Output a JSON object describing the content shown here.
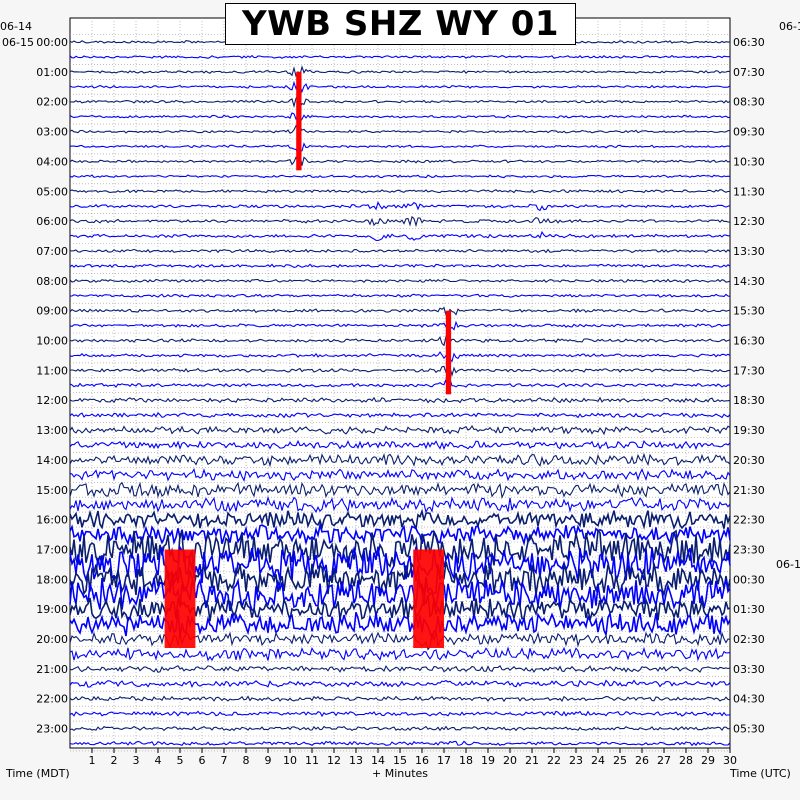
{
  "chart_data": {
    "type": "line",
    "title": "YWB SHZ WY 01",
    "xlabel": "+ Minutes",
    "left_axis_title": "Time (MDT)",
    "right_axis_title": "Time (UTC)",
    "left_date_top": "06-14",
    "left_date_first": "06-15",
    "right_date_top": "06-1",
    "right_date_mid": "06-1",
    "xlim": [
      0,
      30
    ],
    "x_ticks": [
      "1",
      "2",
      "3",
      "4",
      "5",
      "6",
      "7",
      "8",
      "9",
      "10",
      "11",
      "12",
      "13",
      "14",
      "15",
      "16",
      "17",
      "18",
      "19",
      "20",
      "21",
      "22",
      "23",
      "24",
      "25",
      "26",
      "27",
      "28",
      "29",
      "30"
    ],
    "left_hour_labels": [
      "00:00",
      "01:00",
      "02:00",
      "03:00",
      "04:00",
      "05:00",
      "06:00",
      "07:00",
      "08:00",
      "09:00",
      "10:00",
      "11:00",
      "12:00",
      "13:00",
      "14:00",
      "15:00",
      "16:00",
      "17:00",
      "18:00",
      "19:00",
      "20:00",
      "21:00",
      "22:00",
      "23:00"
    ],
    "right_hour_labels": [
      "06:30",
      "07:30",
      "08:30",
      "09:30",
      "10:30",
      "11:30",
      "12:30",
      "13:30",
      "14:30",
      "15:30",
      "16:30",
      "17:30",
      "18:30",
      "19:30",
      "20:30",
      "21:30",
      "22:30",
      "23:30",
      "00:30",
      "01:30",
      "02:30",
      "03:30",
      "04:30",
      "05:30"
    ],
    "traces_per_hour": 2,
    "trace_minutes": 30,
    "trace_colors": [
      "#0a1e6e",
      "#0000ff"
    ],
    "clip_color": "#ff0000",
    "noise_level_by_hour": [
      1.0,
      1.0,
      1.0,
      1.0,
      1.0,
      1.2,
      1.3,
      1.2,
      1.2,
      1.3,
      1.3,
      1.4,
      1.8,
      3.0,
      4.5,
      5.5,
      7.0,
      14.0,
      13.0,
      9.0,
      5.0,
      2.5,
      1.8,
      1.6
    ],
    "events": [
      {
        "hour_start": 1.0,
        "hour_end": 4.3,
        "minute": 10.4,
        "label": "clipped spike",
        "clipped": true
      },
      {
        "hour_start": 5.5,
        "hour_end": 6.7,
        "minute": 14.0,
        "label": "burst",
        "clipped": false
      },
      {
        "hour_start": 5.5,
        "hour_end": 6.7,
        "minute": 15.6,
        "label": "burst",
        "clipped": false
      },
      {
        "hour_start": 5.5,
        "hour_end": 6.7,
        "minute": 21.4,
        "label": "burst",
        "clipped": false
      },
      {
        "hour_start": 9.0,
        "hour_end": 11.8,
        "minute": 17.2,
        "label": "clipped spike",
        "clipped": true
      },
      {
        "hour_start": 17.0,
        "hour_end": 20.3,
        "minute": 5.0,
        "label": "saturated block",
        "clipped": true
      },
      {
        "hour_start": 17.0,
        "hour_end": 20.3,
        "minute": 16.3,
        "label": "saturated block",
        "clipped": true
      }
    ]
  }
}
